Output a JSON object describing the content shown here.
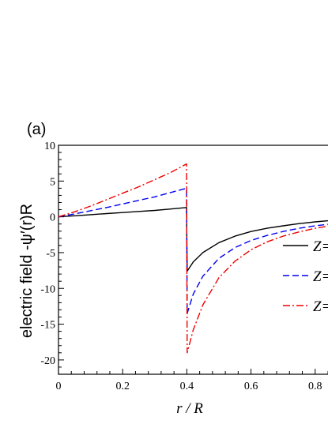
{
  "chart_data": {
    "type": "line",
    "panel_label": "(a)",
    "ylabel": "electric field  -ψ′(r)R",
    "xlabel": "r / R",
    "xlim": [
      0,
      0.84
    ],
    "ylim": [
      -22,
      10
    ],
    "x_ticks": [
      0,
      0.2,
      0.4,
      0.6,
      0.8
    ],
    "x_tick_labels": [
      "0",
      "0.2",
      "0.4",
      "0.6",
      "0.8"
    ],
    "y_ticks": [
      10,
      5,
      0,
      -5,
      -10,
      -15,
      -20
    ],
    "y_tick_labels": [
      "10",
      "5",
      "0",
      "-5",
      "-10",
      "-15",
      "-20"
    ],
    "grid": false,
    "legend_position": "right",
    "series": [
      {
        "name": "Z=",
        "color": "#000000",
        "dash": "solid",
        "x": [
          0,
          0.05,
          0.1,
          0.15,
          0.2,
          0.25,
          0.3,
          0.35,
          0.399,
          0.401,
          0.42,
          0.45,
          0.5,
          0.55,
          0.6,
          0.65,
          0.7,
          0.75,
          0.8,
          0.84
        ],
        "y": [
          0,
          0.15,
          0.3,
          0.45,
          0.6,
          0.75,
          0.9,
          1.1,
          1.3,
          -7.6,
          -6.3,
          -5.0,
          -3.6,
          -2.7,
          -2.05,
          -1.6,
          -1.25,
          -0.95,
          -0.7,
          -0.55
        ]
      },
      {
        "name": "Z=",
        "color": "#0000ee",
        "dash": "dashed",
        "x": [
          0,
          0.05,
          0.1,
          0.15,
          0.2,
          0.25,
          0.3,
          0.35,
          0.399,
          0.401,
          0.42,
          0.45,
          0.5,
          0.55,
          0.6,
          0.65,
          0.7,
          0.75,
          0.8,
          0.84
        ],
        "y": [
          0,
          0.4,
          0.85,
          1.3,
          1.8,
          2.3,
          2.8,
          3.4,
          4.0,
          -13.5,
          -10.8,
          -8.3,
          -5.8,
          -4.3,
          -3.3,
          -2.6,
          -2.05,
          -1.6,
          -1.25,
          -1.05
        ]
      },
      {
        "name": "Z=",
        "color": "#ee0000",
        "dash": "dashdot",
        "x": [
          0,
          0.05,
          0.1,
          0.15,
          0.2,
          0.25,
          0.3,
          0.35,
          0.399,
          0.401,
          0.42,
          0.45,
          0.5,
          0.55,
          0.6,
          0.65,
          0.7,
          0.75,
          0.8,
          0.84
        ],
        "y": [
          0,
          0.7,
          1.5,
          2.4,
          3.3,
          4.2,
          5.2,
          6.2,
          7.4,
          -19.0,
          -15.8,
          -12.3,
          -8.5,
          -6.2,
          -4.6,
          -3.5,
          -2.7,
          -2.1,
          -1.6,
          -1.3
        ]
      }
    ]
  }
}
